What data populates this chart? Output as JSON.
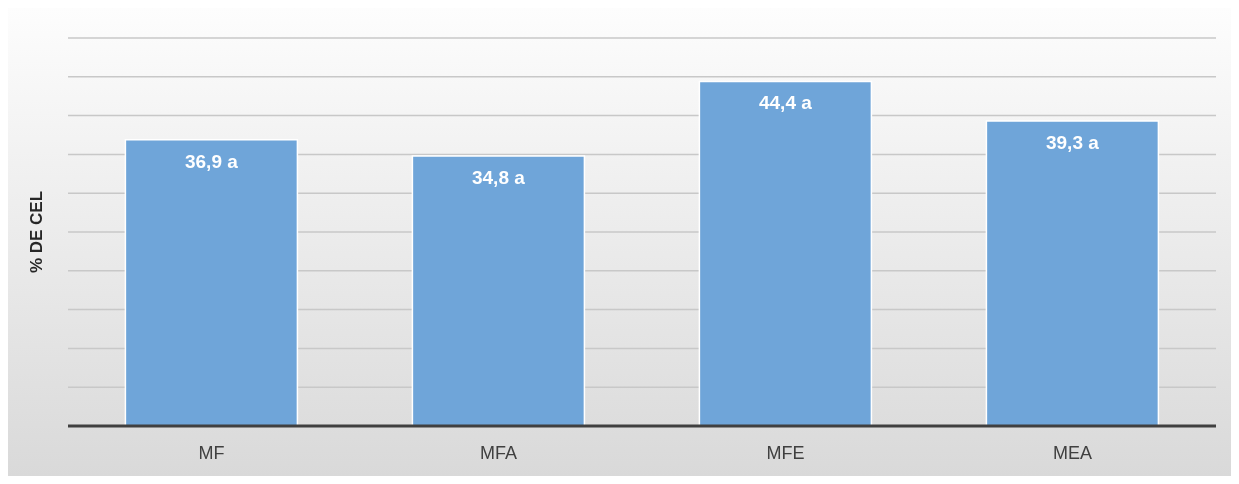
{
  "chart_data": {
    "type": "bar",
    "ylabel": "% DE CEL",
    "categories": [
      "MF",
      "MFA",
      "MFE",
      "MEA"
    ],
    "values": [
      36.9,
      34.8,
      44.4,
      39.3
    ],
    "value_labels": [
      "36,9 a",
      "34,8 a",
      "44,4 a",
      "39,3 a"
    ],
    "color": "#6fa5d9",
    "ylim": [
      0,
      50
    ],
    "yticks": [
      {
        "value": 0,
        "label": null
      },
      {
        "value": 5,
        "label": null
      },
      {
        "value": 10,
        "label": null
      },
      {
        "value": 15,
        "label": null
      },
      {
        "value": 20,
        "label": null
      },
      {
        "value": 25,
        "label": null
      },
      {
        "value": 30,
        "label": null
      },
      {
        "value": 35,
        "label": null
      },
      {
        "value": 40,
        "label": null
      },
      {
        "value": 45,
        "label": null
      },
      {
        "value": 50,
        "label": null
      }
    ],
    "grid": "y",
    "tick_labels": "x"
  }
}
